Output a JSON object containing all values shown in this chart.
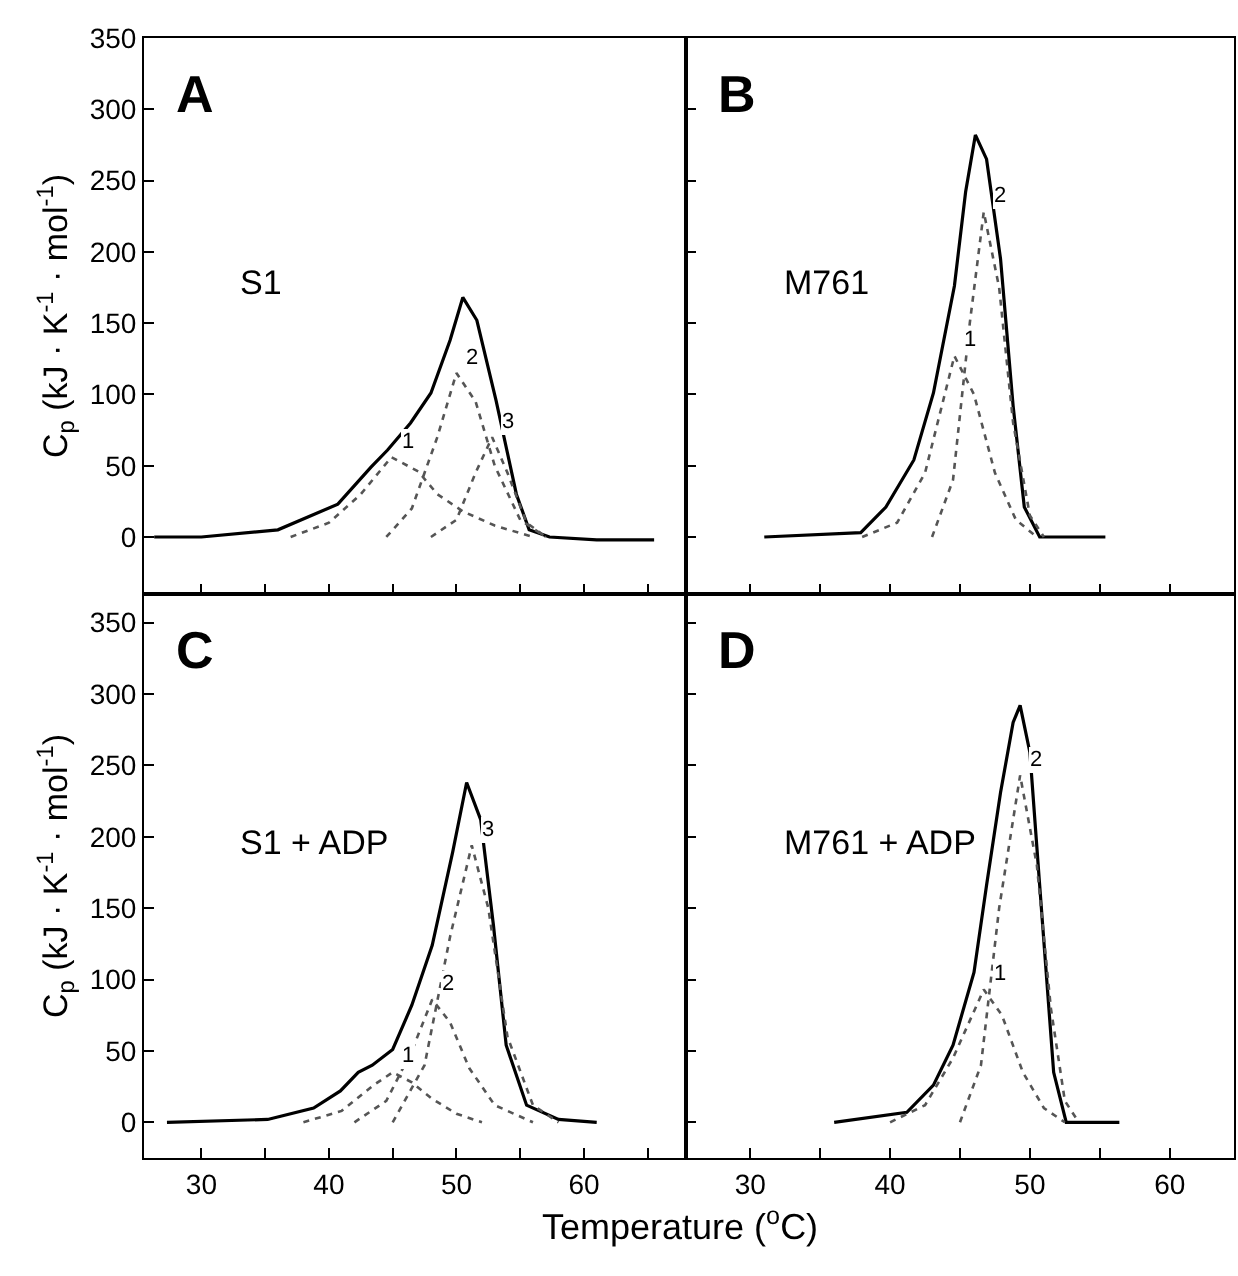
{
  "chart_data": [
    {
      "type": "line",
      "ylabel": "C$_{p}$ (kJ · K$^{-1}$ · mol$^{-1}$)",
      "xlim": [
        25.5,
        68
      ],
      "ylim": [
        -40,
        350
      ],
      "xticks": [
        30,
        {
          "value": 35,
          "label": null
        },
        40,
        {
          "value": 45,
          "label": null
        },
        50,
        {
          "value": 55,
          "label": null
        },
        60,
        {
          "value": 65,
          "label": null
        }
      ],
      "yticks": [
        0,
        50,
        100,
        150,
        200,
        250,
        300,
        350
      ],
      "tick_labels": "y",
      "grid": false,
      "marker": "none",
      "annotations": [
        "A",
        "S1",
        {
          "text": "1",
          "x": 44.9,
          "y": 56
        },
        {
          "text": "2",
          "x": 50,
          "y": 115
        },
        {
          "text": "3",
          "x": 52.8,
          "y": 70
        }
      ],
      "series": [
        {
          "color": "#000000",
          "line_style": "solid",
          "x": [
            26.3,
            30,
            36,
            40.7,
            43.3,
            44.6,
            46.4,
            48,
            49.5,
            50.5,
            51.6,
            53.1,
            54.7,
            55.7,
            57.3,
            61,
            65.5
          ],
          "values": [
            0,
            0,
            5,
            23,
            49,
            61,
            80,
            101,
            138,
            168,
            152,
            96,
            30,
            5,
            0,
            -2,
            -2
          ]
        },
        {
          "color": "#555555",
          "line_style": "dotted",
          "x": [
            37,
            40,
            42.5,
            44.9,
            47,
            48.5,
            50.5,
            53,
            56
          ],
          "values": [
            0,
            10,
            30,
            56,
            46,
            30,
            18,
            8,
            0
          ]
        },
        {
          "color": "#555555",
          "line_style": "dotted",
          "x": [
            44.5,
            46.5,
            48.5,
            50,
            51.5,
            53,
            55,
            57
          ],
          "values": [
            0,
            20,
            70,
            115,
            95,
            50,
            12,
            0
          ]
        },
        {
          "color": "#555555",
          "line_style": "dotted",
          "x": [
            48,
            50,
            51.5,
            52.8,
            54,
            55.5,
            57
          ],
          "values": [
            0,
            12,
            45,
            70,
            45,
            10,
            0
          ]
        }
      ]
    },
    {
      "type": "line",
      "xlim": [
        25.4,
        64.6
      ],
      "ylim": [
        -40,
        350
      ],
      "xticks": [
        30,
        {
          "value": 35,
          "label": null
        },
        40,
        {
          "value": 45,
          "label": null
        },
        50,
        {
          "value": 55,
          "label": null
        },
        60
      ],
      "yticks": [
        0,
        50,
        100,
        150,
        200,
        250,
        300,
        350
      ],
      "tick_labels": false,
      "grid": false,
      "marker": "none",
      "annotations": [
        "B",
        "M761",
        {
          "text": "1",
          "x": 44.6,
          "y": 127
        },
        {
          "text": "2",
          "x": 46.7,
          "y": 228
        }
      ],
      "series": [
        {
          "color": "#000000",
          "line_style": "solid",
          "x": [
            31,
            37.9,
            39.7,
            41.7,
            43.1,
            44.6,
            45.4,
            46.1,
            46.9,
            47.9,
            48.8,
            49.6,
            50.7,
            55.4
          ],
          "values": [
            0,
            3,
            21,
            54,
            101,
            176,
            242,
            282,
            265,
            195,
            92,
            21,
            0,
            0
          ]
        },
        {
          "color": "#555555",
          "line_style": "dotted",
          "x": [
            38,
            40.5,
            42.5,
            44.6,
            46,
            47.5,
            49,
            50.5
          ],
          "values": [
            0,
            10,
            45,
            127,
            100,
            45,
            12,
            0
          ]
        },
        {
          "color": "#555555",
          "line_style": "dotted",
          "x": [
            43,
            44.5,
            45.7,
            46.7,
            47.8,
            48.8,
            50,
            51
          ],
          "values": [
            0,
            40,
            150,
            228,
            175,
            80,
            15,
            0
          ]
        }
      ]
    },
    {
      "type": "line",
      "xlabel": "Temperature ($^{o}$C)",
      "ylabel": "C$_{p}$ (kJ · K$^{-1}$ · mol$^{-1}$)",
      "xlim": [
        25.5,
        68
      ],
      "ylim": [
        -25,
        370
      ],
      "xticks": [
        30,
        {
          "value": 35,
          "label": null
        },
        40,
        {
          "value": 45,
          "label": null
        },
        50,
        {
          "value": 55,
          "label": null
        },
        60,
        {
          "value": 65,
          "label": null
        }
      ],
      "yticks": [
        0,
        50,
        100,
        150,
        200,
        250,
        300,
        350
      ],
      "grid": false,
      "marker": "none",
      "annotations": [
        "C",
        "S1 + ADP",
        {
          "text": "1",
          "x": 45,
          "y": 35
        },
        {
          "text": "2",
          "x": 48.1,
          "y": 86
        },
        {
          "text": "3",
          "x": 51.2,
          "y": 194
        }
      ],
      "series": [
        {
          "color": "#000000",
          "line_style": "solid",
          "x": [
            27.3,
            35.2,
            38.8,
            40.9,
            42.3,
            43.4,
            45,
            46.5,
            48.1,
            49.7,
            50.8,
            51.9,
            52.9,
            53.9,
            55.5,
            58,
            61
          ],
          "values": [
            0,
            2,
            10,
            22,
            35,
            40,
            51,
            82,
            124,
            189,
            238,
            212,
            138,
            54,
            12,
            2,
            0
          ]
        },
        {
          "color": "#555555",
          "line_style": "dotted",
          "x": [
            38,
            41,
            43.5,
            45,
            46.5,
            48,
            50,
            52
          ],
          "values": [
            0,
            8,
            26,
            35,
            28,
            17,
            6,
            0
          ]
        },
        {
          "color": "#555555",
          "line_style": "dotted",
          "x": [
            42,
            44.5,
            46.5,
            48.1,
            49.5,
            51,
            53,
            56
          ],
          "values": [
            0,
            15,
            50,
            86,
            70,
            38,
            12,
            0
          ]
        },
        {
          "color": "#555555",
          "line_style": "dotted",
          "x": [
            45,
            47.5,
            49.5,
            51.2,
            52.5,
            54,
            56,
            58
          ],
          "values": [
            0,
            40,
            130,
            194,
            150,
            60,
            12,
            0
          ]
        }
      ]
    },
    {
      "type": "line",
      "xlim": [
        25.4,
        64.6
      ],
      "ylim": [
        -25,
        370
      ],
      "xticks": [
        30,
        {
          "value": 35,
          "label": null
        },
        40,
        {
          "value": 45,
          "label": null
        },
        50,
        {
          "value": 55,
          "label": null
        },
        60
      ],
      "yticks": [
        0,
        50,
        100,
        150,
        200,
        250,
        300,
        350
      ],
      "tick_labels": "x",
      "grid": false,
      "marker": "none",
      "annotations": [
        "D",
        "M761 + ADP",
        {
          "text": "1",
          "x": 46.7,
          "y": 93
        },
        {
          "text": "2",
          "x": 49.3,
          "y": 243
        }
      ],
      "series": [
        {
          "color": "#000000",
          "line_style": "solid",
          "x": [
            36,
            41.2,
            43.1,
            44.5,
            46,
            46.9,
            47.9,
            48.8,
            49.3,
            50,
            50.7,
            51.7,
            52.6,
            56.4
          ],
          "values": [
            0,
            7,
            26,
            54,
            105,
            166,
            231,
            280,
            292,
            259,
            166,
            35,
            0,
            0
          ]
        },
        {
          "color": "#555555",
          "line_style": "dotted",
          "x": [
            40,
            42.5,
            44.5,
            46.7,
            48,
            49.5,
            51,
            52.5
          ],
          "values": [
            0,
            12,
            45,
            93,
            75,
            35,
            10,
            0
          ]
        },
        {
          "color": "#555555",
          "line_style": "dotted",
          "x": [
            45,
            46.5,
            47.8,
            49.3,
            50.5,
            51.5,
            52.5,
            53.5
          ],
          "values": [
            0,
            40,
            150,
            243,
            180,
            80,
            15,
            0
          ]
        }
      ]
    }
  ]
}
